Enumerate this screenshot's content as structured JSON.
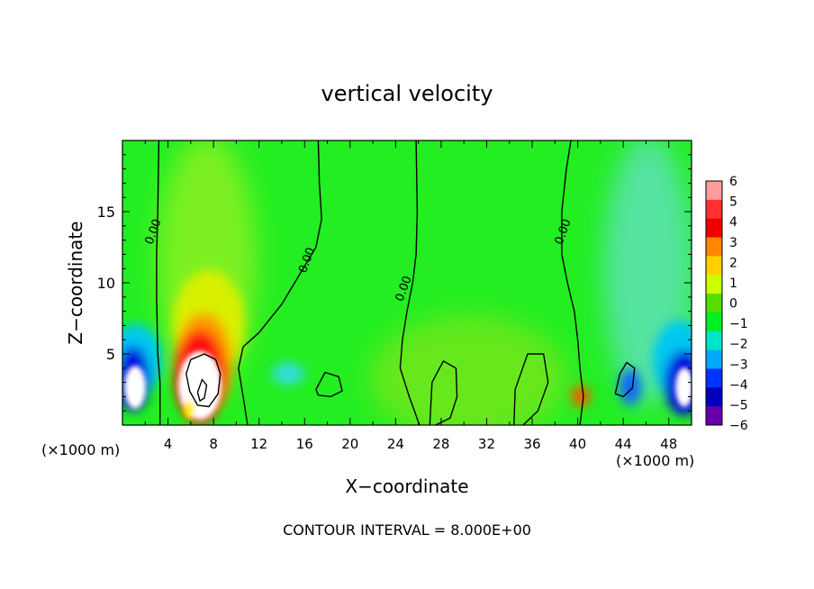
{
  "chart_data": {
    "type": "heatmap",
    "title": "vertical velocity",
    "xlabel": "X−coordinate",
    "ylabel": "Z−coordinate",
    "x_unit_left": "(×1000 m)",
    "x_unit_right": "(×1000 m)",
    "xlim": [
      0,
      50
    ],
    "ylim": [
      0,
      20
    ],
    "x_ticks": [
      4,
      8,
      12,
      16,
      20,
      24,
      28,
      32,
      36,
      40,
      44,
      48
    ],
    "y_ticks": [
      5,
      10,
      15
    ],
    "colorbar_levels": [
      "6",
      "5",
      "4",
      "3",
      "2",
      "1",
      "0",
      "−1",
      "−2",
      "−3",
      "−4",
      "−5",
      "−6"
    ],
    "colorbar_colors": [
      "#ff9d9d",
      "#ff3030",
      "#ee0000",
      "#ff8800",
      "#ffd000",
      "#ccff00",
      "#55dd00",
      "#00ee22",
      "#00e5c8",
      "#00aaff",
      "#0033ff",
      "#0000bb",
      "#6600aa"
    ],
    "contour_labels": [
      {
        "text": "0.00",
        "x": 3.0,
        "y": 13.5
      },
      {
        "text": "0.00",
        "x": 16.5,
        "y": 11.5
      },
      {
        "text": "0.00",
        "x": 25.0,
        "y": 9.5
      },
      {
        "text": "0.00",
        "x": 39.0,
        "y": 13.5
      }
    ],
    "contour_lines": [
      [
        [
          3.3,
          0
        ],
        [
          3.3,
          3
        ],
        [
          3.1,
          5
        ],
        [
          3.0,
          9
        ],
        [
          3.0,
          12
        ],
        [
          3.1,
          15
        ],
        [
          3.2,
          20
        ]
      ],
      [
        [
          11.0,
          0
        ],
        [
          10.6,
          2
        ],
        [
          10.2,
          4
        ],
        [
          10.6,
          5.5
        ],
        [
          12,
          6.5
        ],
        [
          14,
          8.5
        ],
        [
          15.5,
          10.5
        ],
        [
          17,
          12.5
        ],
        [
          17.5,
          14.5
        ],
        [
          17.3,
          17
        ],
        [
          17.2,
          20
        ]
      ],
      [
        [
          26.1,
          0
        ],
        [
          25.2,
          2
        ],
        [
          24.4,
          4
        ],
        [
          24.6,
          6
        ],
        [
          25.0,
          8
        ],
        [
          25.5,
          10
        ],
        [
          25.8,
          12
        ],
        [
          25.9,
          15
        ],
        [
          25.8,
          20
        ]
      ],
      [
        [
          40.2,
          0
        ],
        [
          40.5,
          2
        ],
        [
          40.2,
          4
        ],
        [
          40.0,
          6
        ],
        [
          39.7,
          8
        ],
        [
          39.1,
          10
        ],
        [
          38.6,
          12
        ],
        [
          38.6,
          15
        ],
        [
          39.0,
          18
        ],
        [
          39.4,
          20
        ]
      ],
      [
        [
          6.0,
          4.6
        ],
        [
          7.2,
          5.0
        ],
        [
          8.2,
          4.6
        ],
        [
          8.6,
          3.6
        ],
        [
          8.4,
          2.2
        ],
        [
          7.6,
          1.3
        ],
        [
          6.6,
          1.4
        ],
        [
          5.9,
          2.4
        ],
        [
          5.6,
          3.6
        ],
        [
          6.0,
          4.6
        ]
      ],
      [
        [
          6.6,
          2.3
        ],
        [
          7.0,
          3.2
        ],
        [
          7.4,
          2.8
        ],
        [
          7.2,
          1.9
        ],
        [
          6.8,
          1.7
        ],
        [
          6.6,
          2.3
        ]
      ],
      [
        [
          17.0,
          2.5
        ],
        [
          17.8,
          3.7
        ],
        [
          19.0,
          3.4
        ],
        [
          19.3,
          2.4
        ],
        [
          18.3,
          2.0
        ],
        [
          17.2,
          2.1
        ],
        [
          17.0,
          2.5
        ]
      ],
      [
        [
          27.0,
          0
        ],
        [
          27.2,
          3
        ],
        [
          28.2,
          4.5
        ],
        [
          29.3,
          4
        ],
        [
          29.4,
          2
        ],
        [
          28.8,
          0.5
        ],
        [
          27.5,
          0
        ]
      ],
      [
        [
          34.4,
          0
        ],
        [
          34.5,
          2.5
        ],
        [
          35.6,
          5
        ],
        [
          37,
          5
        ],
        [
          37.4,
          3
        ],
        [
          36.5,
          1
        ],
        [
          35.2,
          0
        ]
      ],
      [
        [
          43.3,
          2.2
        ],
        [
          43.7,
          3.6
        ],
        [
          44.3,
          4.4
        ],
        [
          45.0,
          4.0
        ],
        [
          44.8,
          2.6
        ],
        [
          44.0,
          2.0
        ],
        [
          43.3,
          2.2
        ]
      ]
    ],
    "grid": false,
    "legend_position": "right"
  },
  "footer": {
    "contour_interval": "CONTOUR INTERVAL = 8.000E+00"
  }
}
